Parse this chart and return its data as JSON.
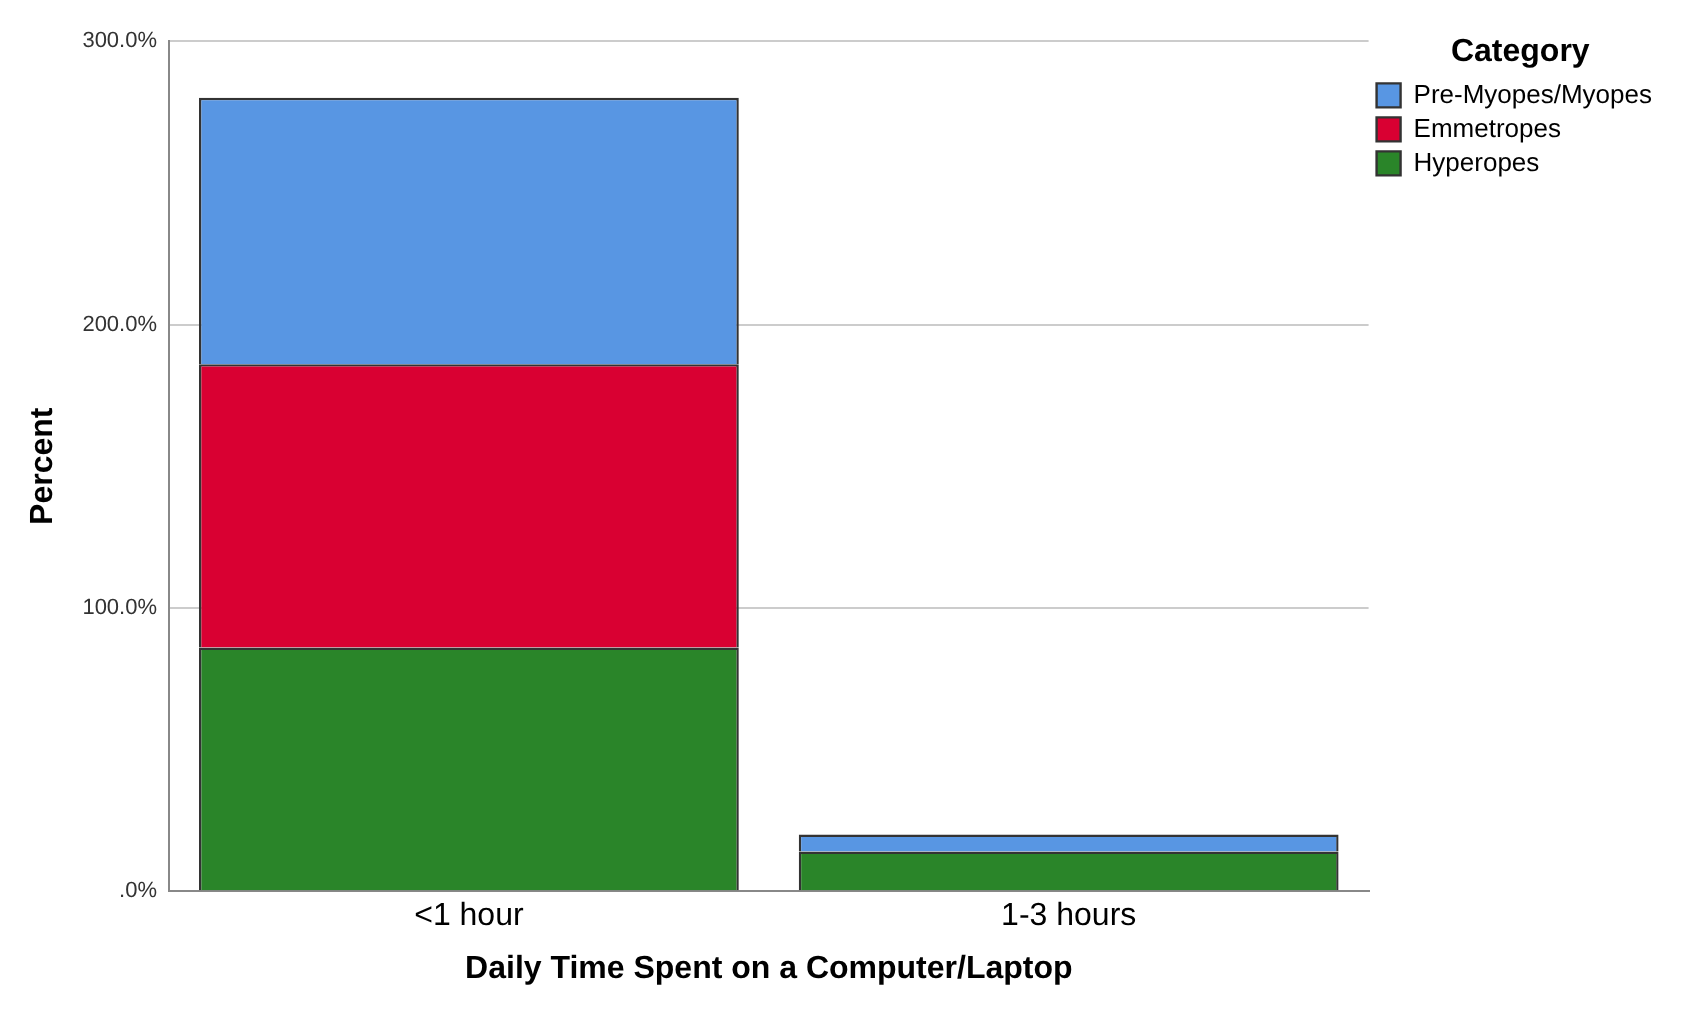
{
  "chart_data": {
    "type": "bar",
    "stacked": true,
    "xlabel": "Daily Time Spent on a Computer/Laptop",
    "ylabel": "Percent",
    "legend_title": "Category",
    "legend": "top right",
    "grid": "y",
    "categories": [
      "<1 hour",
      "1-3 hours"
    ],
    "series": [
      {
        "name": "Hyperopes",
        "color": "#2a8529",
        "values": [
          86,
          14
        ]
      },
      {
        "name": "Emmetropes",
        "color": "#d90032",
        "values": [
          100,
          null
        ]
      },
      {
        "name": "Pre-Myopes/Myopes",
        "color": "#5896e3",
        "values": [
          94,
          6
        ]
      }
    ],
    "ylim": [
      0,
      300
    ],
    "yticks": [
      {
        "value": 0,
        "label": ".0%"
      },
      {
        "value": 100,
        "label": "100.0%"
      },
      {
        "value": 200,
        "label": "200.0%"
      },
      {
        "value": 300,
        "label": "300.0%"
      }
    ]
  }
}
